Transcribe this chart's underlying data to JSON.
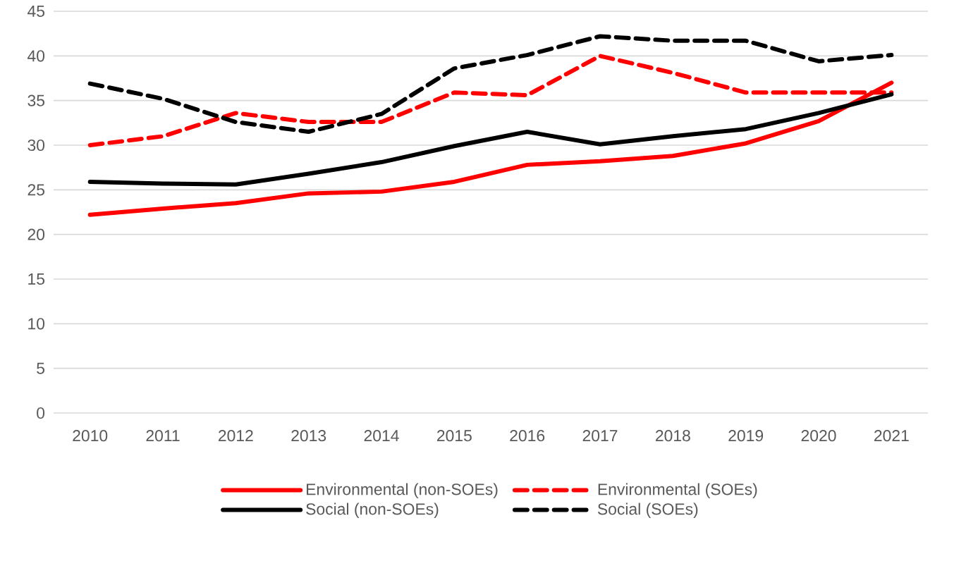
{
  "chart_data": {
    "type": "line",
    "categories": [
      "2010",
      "2011",
      "2012",
      "2013",
      "2014",
      "2015",
      "2016",
      "2017",
      "2018",
      "2019",
      "2020",
      "2021"
    ],
    "series": [
      {
        "name": "Environmental (non-SOEs)",
        "color": "#ff0000",
        "line_style": "solid",
        "values": [
          22.2,
          22.9,
          23.5,
          24.6,
          24.8,
          25.9,
          27.8,
          28.2,
          28.8,
          30.2,
          32.7,
          37.0
        ]
      },
      {
        "name": "Environmental (SOEs)",
        "color": "#ff0000",
        "line_style": "dashed",
        "values": [
          30.0,
          31.0,
          33.6,
          32.6,
          32.6,
          35.9,
          35.6,
          40.0,
          38.1,
          35.9,
          35.9,
          35.9
        ]
      },
      {
        "name": "Social (non-SOEs)",
        "color": "#000000",
        "line_style": "solid",
        "values": [
          25.9,
          25.7,
          25.6,
          26.8,
          28.1,
          29.9,
          31.5,
          30.1,
          31.0,
          31.8,
          33.6,
          35.7
        ]
      },
      {
        "name": "Social (SOEs)",
        "color": "#000000",
        "line_style": "dashed",
        "values": [
          36.9,
          35.2,
          32.6,
          31.5,
          33.5,
          38.6,
          40.1,
          42.2,
          41.7,
          41.7,
          39.4,
          40.1
        ]
      }
    ],
    "ylim": [
      0,
      45
    ],
    "yticks": [
      0,
      5,
      10,
      15,
      20,
      25,
      30,
      35,
      40,
      45
    ],
    "grid": "y",
    "legend": "bottom",
    "marker": "none"
  }
}
